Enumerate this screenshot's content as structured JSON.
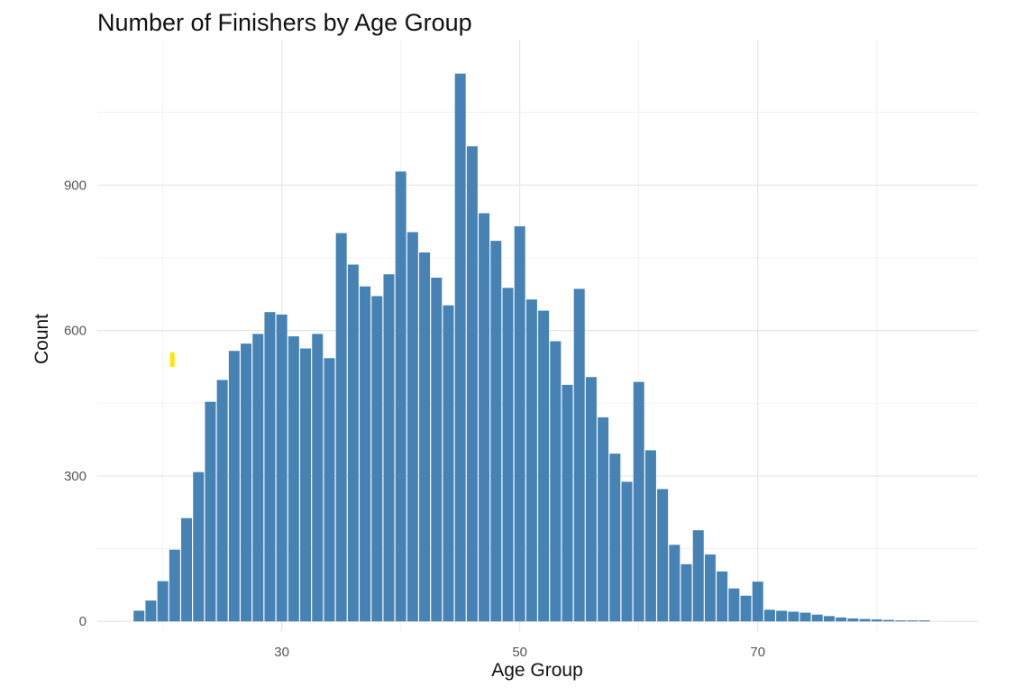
{
  "chart_data": {
    "type": "bar",
    "title": "Number of Finishers by Age Group",
    "xlabel": "Age Group",
    "ylabel": "Count",
    "xlim": [
      14.5,
      88.5
    ],
    "ylim": [
      -20,
      1200
    ],
    "x_ticks": [
      30,
      50,
      70
    ],
    "y_ticks": [
      0,
      300,
      600,
      900
    ],
    "grid": true,
    "bar_color": "#4682B4",
    "marker_color": "#FFE600",
    "marker": {
      "x": 20.8,
      "y": 540
    },
    "x": [
      18,
      19,
      20,
      21,
      22,
      23,
      24,
      25,
      26,
      27,
      28,
      29,
      30,
      31,
      32,
      33,
      34,
      35,
      36,
      37,
      38,
      39,
      40,
      41,
      42,
      43,
      44,
      45,
      46,
      47,
      48,
      49,
      50,
      51,
      52,
      53,
      54,
      55,
      56,
      57,
      58,
      59,
      60,
      61,
      62,
      63,
      64,
      65,
      66,
      67,
      68,
      69,
      70,
      71,
      72,
      73,
      74,
      75,
      76,
      77,
      78,
      79,
      80,
      81,
      82,
      83,
      84
    ],
    "values": [
      22,
      43,
      83,
      148,
      213,
      308,
      453,
      498,
      558,
      573,
      593,
      638,
      633,
      588,
      563,
      593,
      543,
      801,
      736,
      691,
      671,
      716,
      928,
      803,
      761,
      709,
      652,
      1130,
      980,
      842,
      785,
      688,
      815,
      664,
      641,
      578,
      488,
      686,
      504,
      421,
      346,
      288,
      494,
      353,
      273,
      158,
      118,
      188,
      138,
      103,
      68,
      53,
      82,
      24,
      22,
      20,
      18,
      14,
      11,
      8,
      6,
      5,
      4,
      3,
      2,
      2,
      2
    ]
  }
}
